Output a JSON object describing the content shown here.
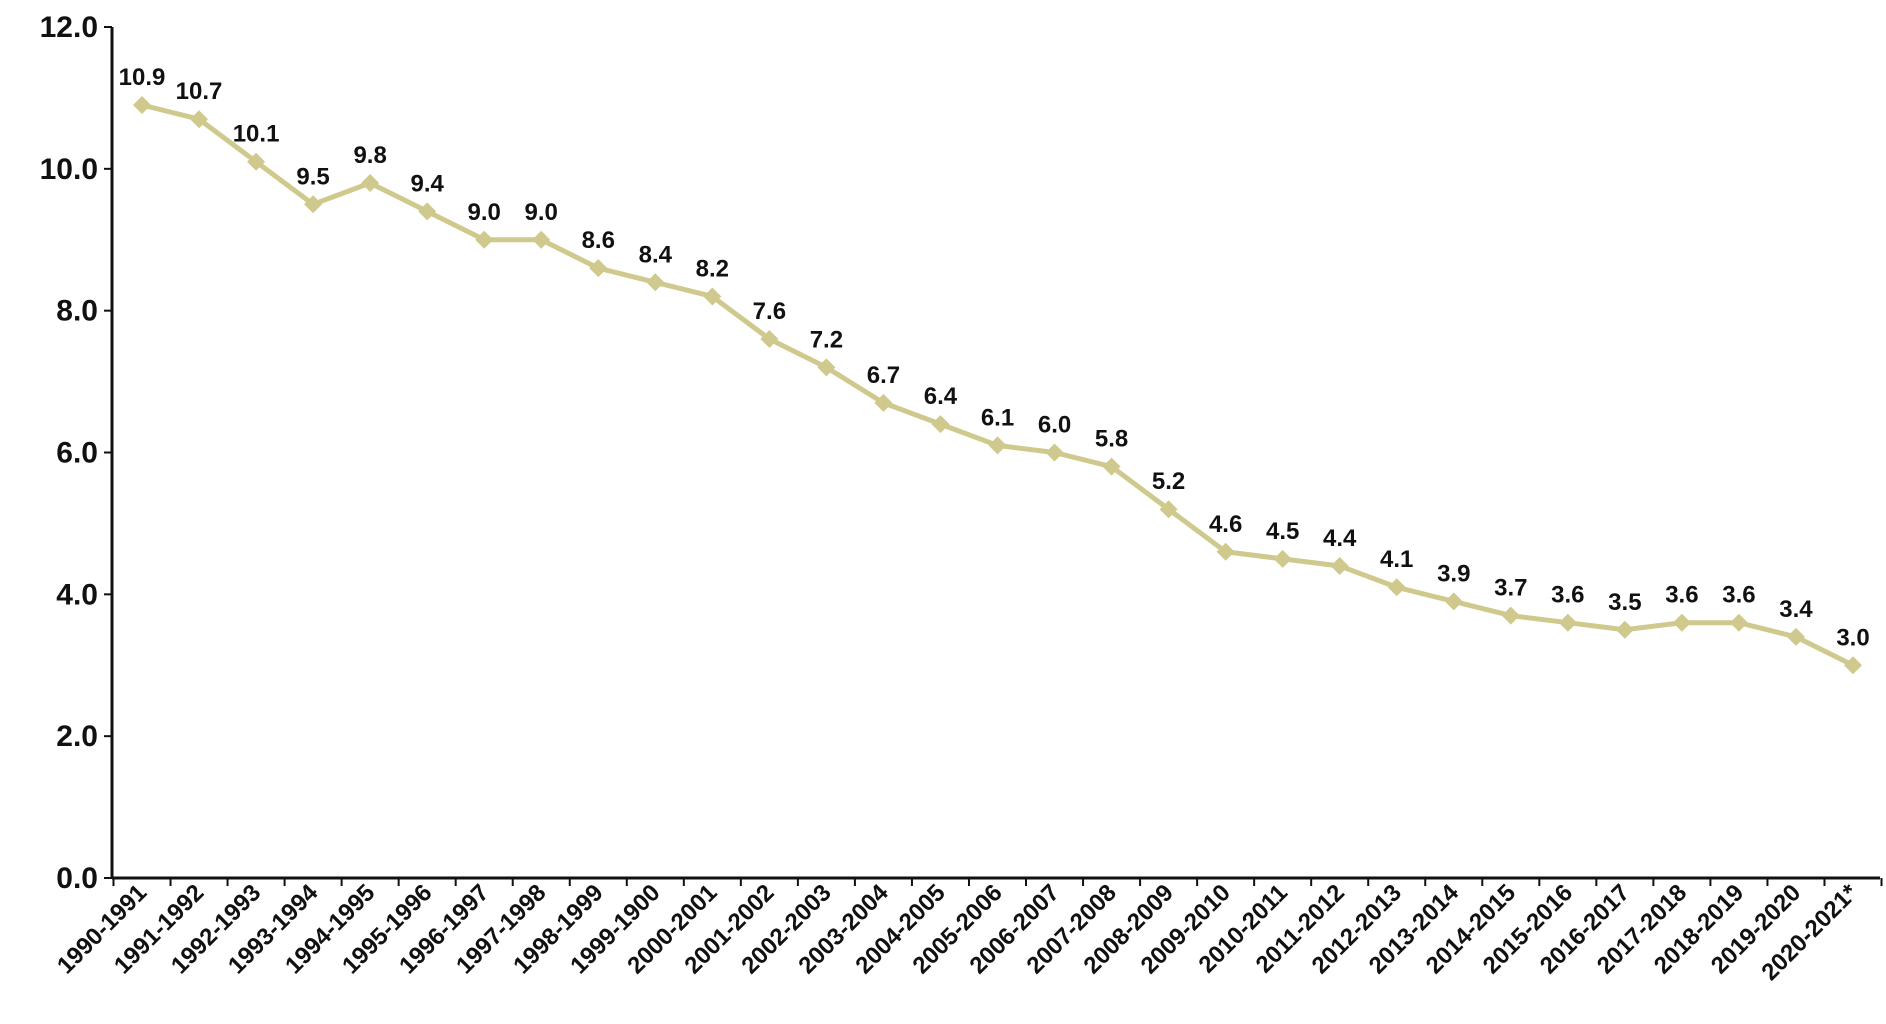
{
  "chart_data": {
    "type": "line",
    "title": "",
    "xlabel": "",
    "ylabel": "",
    "ylim": [
      0,
      12
    ],
    "yticks": [
      "0.0",
      "2.0",
      "4.0",
      "6.0",
      "8.0",
      "10.0",
      "12.0"
    ],
    "yticks_values": [
      0,
      2,
      4,
      6,
      8,
      10,
      12
    ],
    "grid": false,
    "legend": "none",
    "series_color": "#cfc98d",
    "categories": [
      "1990-1991",
      "1991-1992",
      "1992-1993",
      "1993-1994",
      "1994-1995",
      "1995-1996",
      "1996-1997",
      "1997-1998",
      "1998-1999",
      "1999-1900",
      "2000-2001",
      "2001-2002",
      "2002-2003",
      "2003-2004",
      "2004-2005",
      "2005-2006",
      "2006-2007",
      "2007-2008",
      "2008-2009",
      "2009-2010",
      "2010-2011",
      "2011-2012",
      "2012-2013",
      "2013-2014",
      "2014-2015",
      "2015-2016",
      "2016-2017",
      "2017-2018",
      "2018-2019",
      "2019-2020",
      "2020-2021*"
    ],
    "values": [
      10.9,
      10.7,
      10.1,
      9.5,
      9.8,
      9.4,
      9.0,
      9.0,
      8.6,
      8.4,
      8.2,
      7.6,
      7.2,
      6.7,
      6.4,
      6.1,
      6.0,
      5.8,
      5.2,
      4.6,
      4.5,
      4.4,
      4.1,
      3.9,
      3.7,
      3.6,
      3.5,
      3.6,
      3.6,
      3.4,
      3.0
    ],
    "data_labels": [
      "10.9",
      "10.7",
      "10.1",
      "9.5",
      "9.8",
      "9.4",
      "9.0",
      "9.0",
      "8.6",
      "8.4",
      "8.2",
      "7.6",
      "7.2",
      "6.7",
      "6.4",
      "6.1",
      "6.0",
      "5.8",
      "5.2",
      "4.6",
      "4.5",
      "4.4",
      "4.1",
      "3.9",
      "3.7",
      "3.6",
      "3.5",
      "3.6",
      "3.6",
      "3.4",
      "3.0"
    ]
  }
}
